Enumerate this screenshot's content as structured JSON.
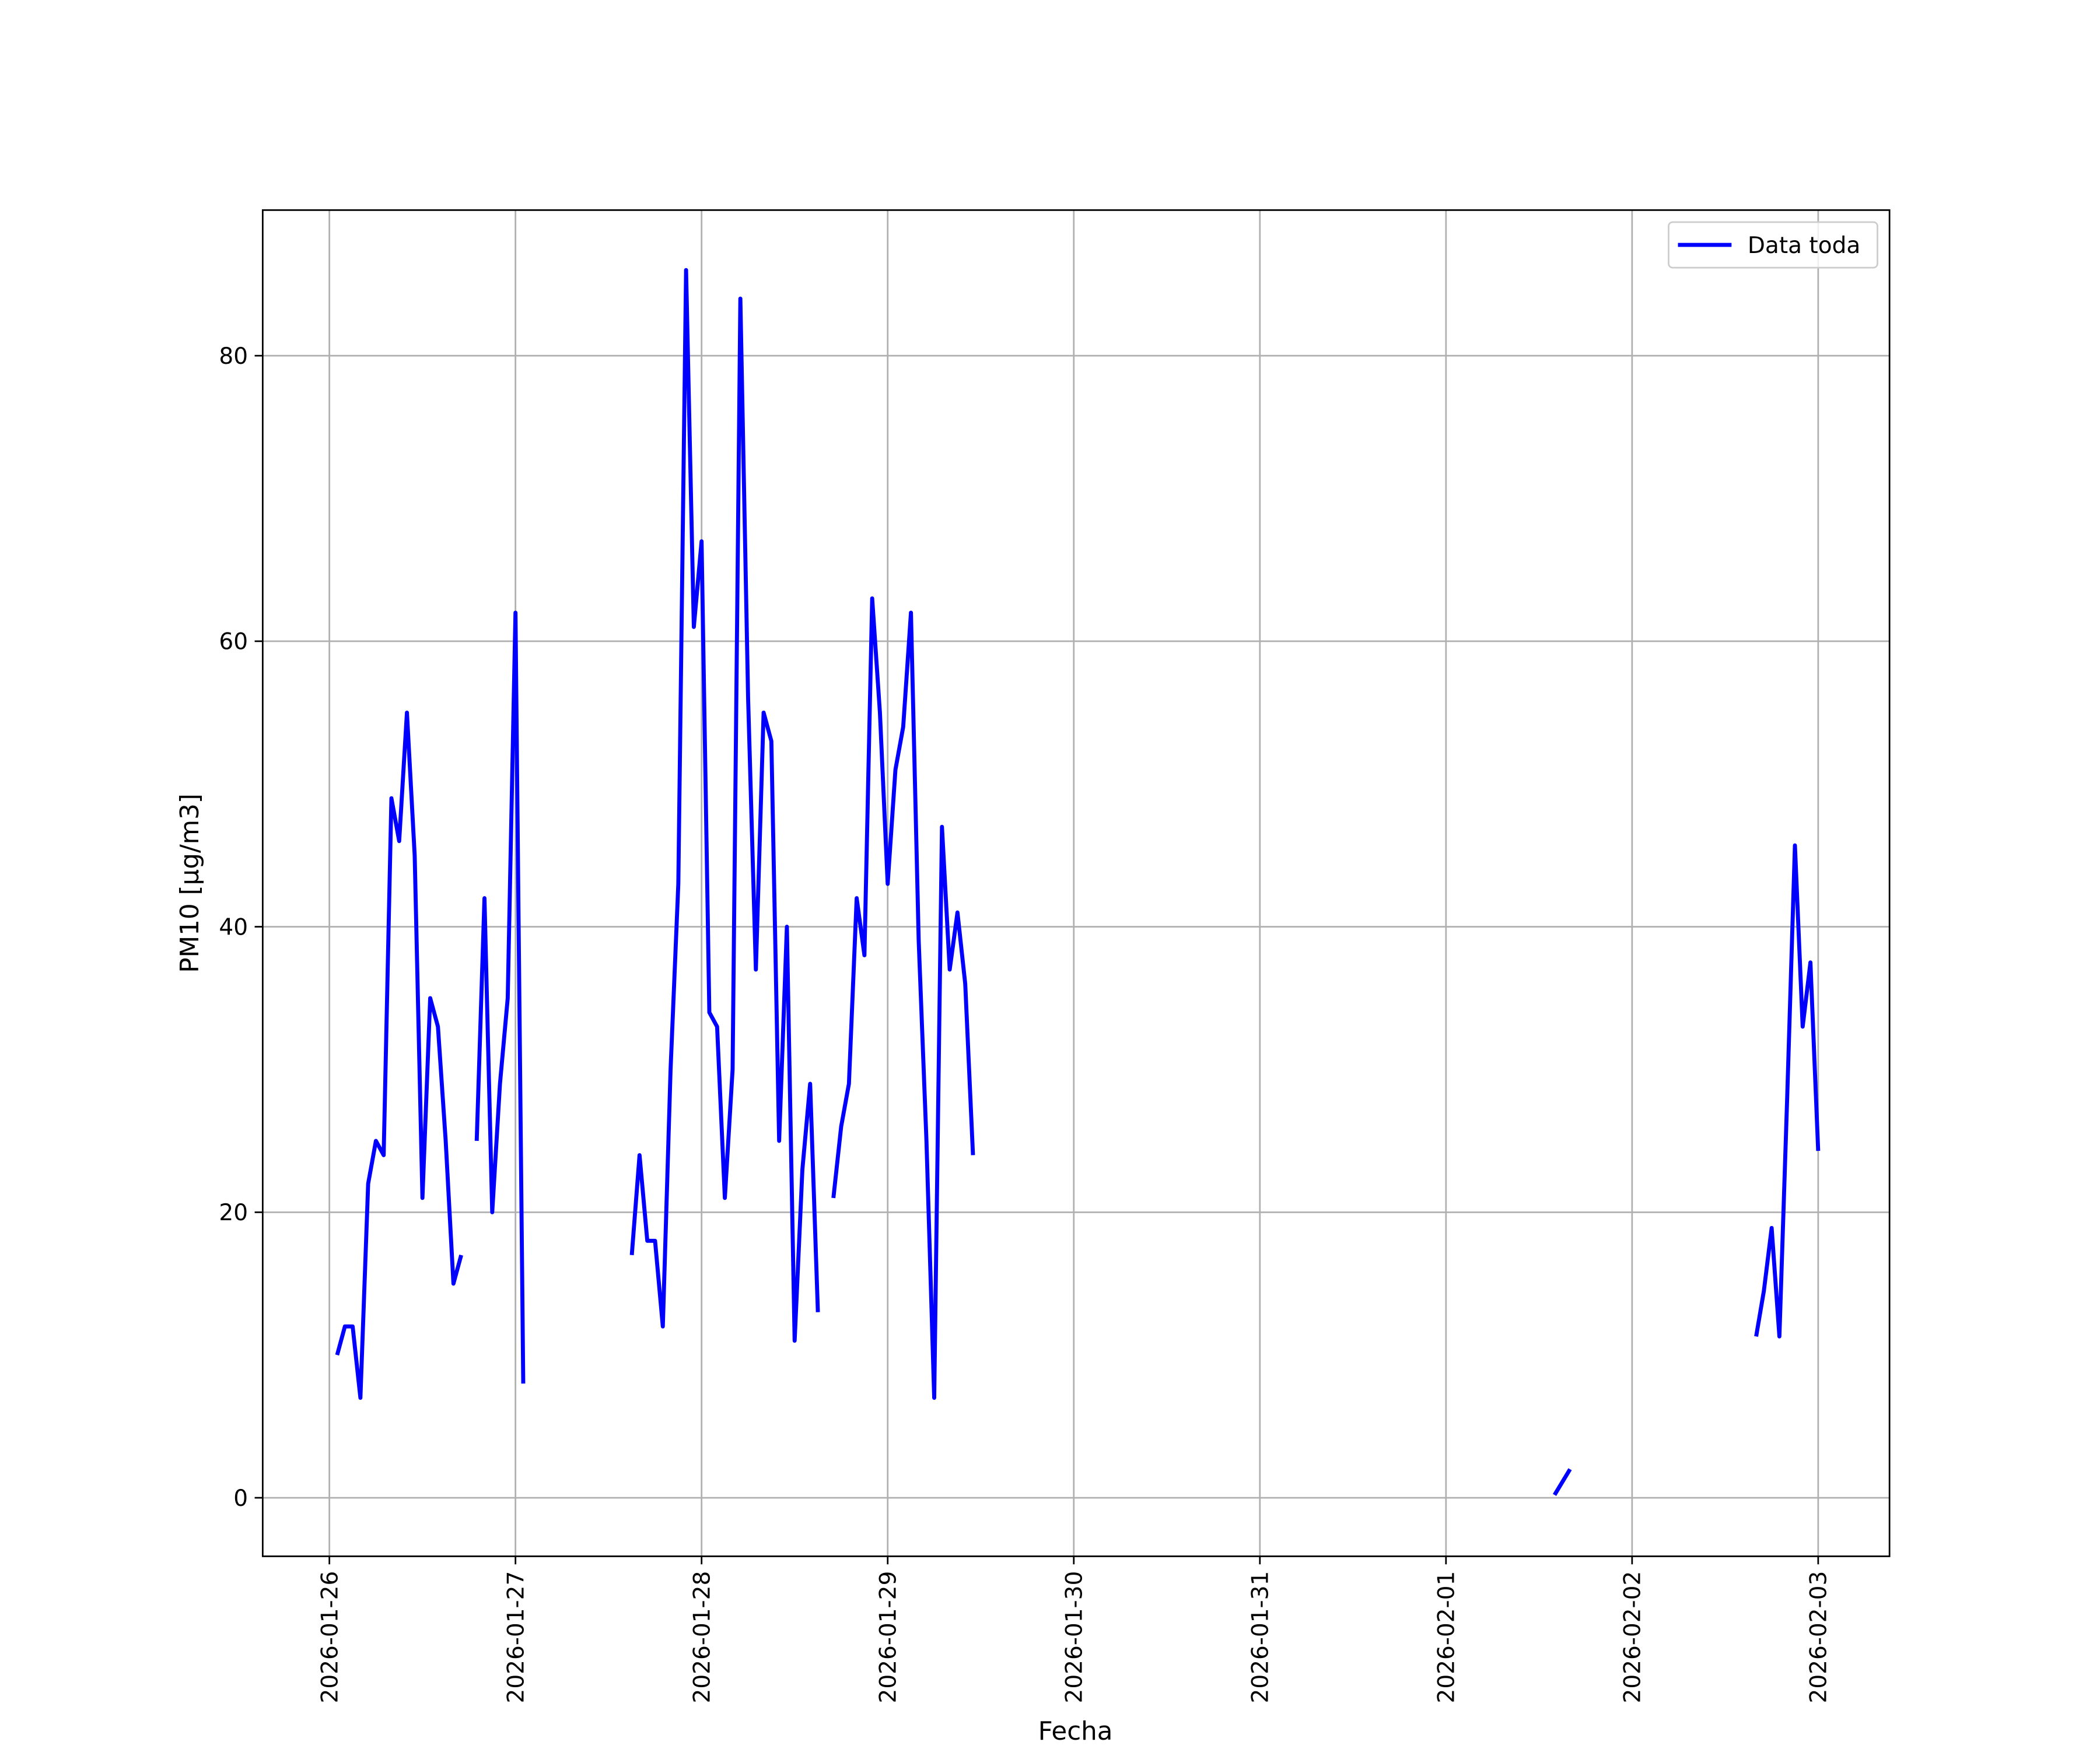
{
  "chart_data": {
    "type": "line",
    "xlabel": "Fecha",
    "ylabel": "PM10 [μg/m3]",
    "x": [
      1,
      2,
      3,
      4,
      5,
      6,
      7,
      8,
      9,
      10,
      11,
      12,
      13,
      14,
      15,
      16,
      17,
      18,
      19,
      20,
      21,
      22,
      23,
      24,
      25,
      26,
      39,
      40,
      41,
      42,
      43,
      44,
      45,
      46,
      47,
      48,
      49,
      50,
      51,
      52,
      53,
      54,
      55,
      56,
      57,
      58,
      59,
      60,
      61,
      62,
      63,
      64,
      65,
      66,
      67,
      68,
      69,
      70,
      71,
      72,
      73,
      74,
      75,
      76,
      77,
      78,
      79,
      80,
      81,
      82,
      83,
      84,
      158,
      160,
      170,
      184,
      185,
      186,
      187,
      188,
      189,
      190,
      191,
      192
    ],
    "series": [
      {
        "name": "Data toda",
        "color": "#0000ff",
        "values": [
          10,
          12,
          12,
          7,
          22,
          25,
          24,
          49,
          46,
          55,
          45,
          21,
          35,
          33,
          25,
          15,
          17,
          null,
          25,
          42,
          20,
          29,
          35,
          62,
          8,
          null,
          17,
          24,
          18,
          18,
          12,
          30,
          43,
          86,
          61,
          67,
          34,
          33,
          21,
          30,
          84,
          56,
          37,
          55,
          53,
          25,
          40,
          11,
          23,
          29,
          13,
          null,
          21,
          26,
          29,
          42,
          38,
          63,
          55,
          43,
          51,
          54,
          62,
          39,
          25,
          7,
          47,
          37,
          41,
          36,
          24,
          null,
          0.2,
          2,
          null,
          11.3,
          14.5,
          18.9,
          11.3,
          28,
          45.7,
          33,
          37.5,
          24.3
        ]
      }
    ],
    "xlim": [
      -8.6,
      201.2
    ],
    "xticks": [
      {
        "value": 0,
        "label": "2026-01-26"
      },
      {
        "value": 24,
        "label": "2026-01-27"
      },
      {
        "value": 48,
        "label": "2026-01-28"
      },
      {
        "value": 72,
        "label": "2026-01-29"
      },
      {
        "value": 96,
        "label": "2026-01-30"
      },
      {
        "value": 120,
        "label": "2026-01-31"
      },
      {
        "value": 144,
        "label": "2026-02-01"
      },
      {
        "value": 168,
        "label": "2026-02-02"
      },
      {
        "value": 192,
        "label": "2026-02-03"
      }
    ],
    "ylim": [
      -4.1,
      90.2
    ],
    "yticks": [
      0,
      20,
      40,
      60,
      80
    ],
    "grid": true,
    "legend": "upper right"
  }
}
